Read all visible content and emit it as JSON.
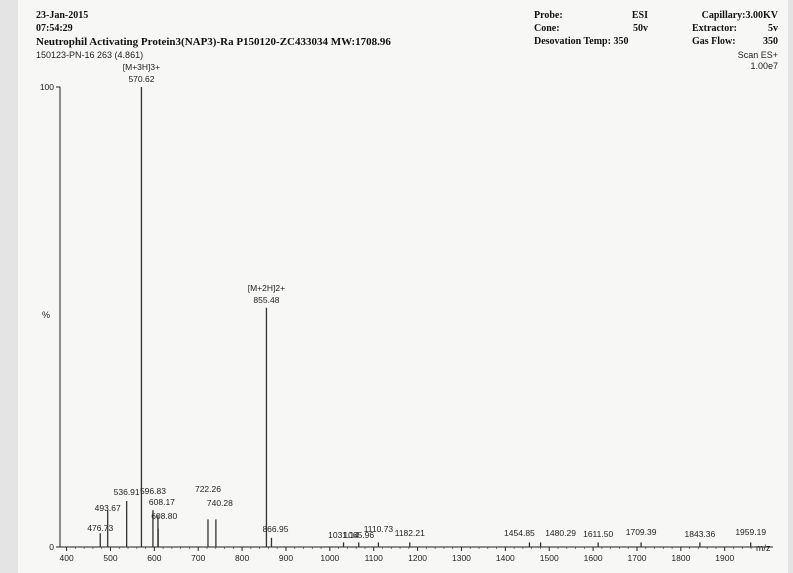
{
  "header": {
    "date": "23-Jan-2015",
    "time": "07:54:29",
    "title": "Neutrophil Activating Protein3(NAP3)-Ra  P150120-ZC433034  MW:1708.96",
    "sample": "150123-PN-16 263 (4.861)",
    "probe_label": "Probe:",
    "probe_value": "ESI",
    "cone_label": "Cone:",
    "cone_value": "50v",
    "desolvation_label": "Desovation  Temp: 350",
    "capillary": "Capillary:3.00KV",
    "extractor_label": "Extractor:",
    "extractor_value": "5v",
    "gasflow_label": "Gas Flow:",
    "gasflow_value": "350",
    "scan_mode": "Scan ES+",
    "intensity_max": "1.00e7"
  },
  "chart_data": {
    "type": "bar",
    "title": "Neutrophil Activating Protein3(NAP3)-Ra  P150120-ZC433034  MW:1708.96",
    "xlabel": "m/z",
    "ylabel": "%",
    "xlim": [
      385,
      2010
    ],
    "ylim": [
      0,
      100
    ],
    "x_ticks": [
      400,
      500,
      600,
      700,
      800,
      900,
      1000,
      1100,
      1200,
      1300,
      1400,
      1500,
      1600,
      1700,
      1800,
      1900
    ],
    "y_ticks": [
      0,
      100
    ],
    "grid": false,
    "legend": "none",
    "peaks": [
      {
        "mz": 476.73,
        "rel": 3
      },
      {
        "mz": 493.67,
        "rel": 8
      },
      {
        "mz": 536.91,
        "rel": 10
      },
      {
        "mz": 570.62,
        "rel": 100
      },
      {
        "mz": 596.83,
        "rel": 8
      },
      {
        "mz": 608.17,
        "rel": 7
      },
      {
        "mz": 608.8,
        "rel": 4
      },
      {
        "mz": 722.26,
        "rel": 6
      },
      {
        "mz": 740.28,
        "rel": 6
      },
      {
        "mz": 855.48,
        "rel": 52
      },
      {
        "mz": 866.95,
        "rel": 2
      },
      {
        "mz": 1031.14,
        "rel": 1
      },
      {
        "mz": 1065.96,
        "rel": 1
      },
      {
        "mz": 1110.73,
        "rel": 1
      },
      {
        "mz": 1182.21,
        "rel": 1
      },
      {
        "mz": 1454.85,
        "rel": 1
      },
      {
        "mz": 1480.29,
        "rel": 1
      },
      {
        "mz": 1611.5,
        "rel": 1
      },
      {
        "mz": 1709.39,
        "rel": 1
      },
      {
        "mz": 1843.36,
        "rel": 1
      },
      {
        "mz": 1959.19,
        "rel": 1
      }
    ],
    "peak_labels": [
      {
        "text": "476.73",
        "mz": 476.73
      },
      {
        "text": "493.67",
        "mz": 493.67
      },
      {
        "text": "536.91",
        "mz": 536.91
      },
      {
        "text": "570.62",
        "mz": 570.62
      },
      {
        "text": "596.83",
        "mz": 596.83
      },
      {
        "text": "608.17",
        "mz": 608.17
      },
      {
        "text": "608.80",
        "mz": 608.8
      },
      {
        "text": "722.26",
        "mz": 722.26
      },
      {
        "text": "740.28",
        "mz": 740.28
      },
      {
        "text": "855.48",
        "mz": 855.48
      },
      {
        "text": "866.95",
        "mz": 866.95
      },
      {
        "text": "1031.14",
        "mz": 1031.14
      },
      {
        "text": "1065.96",
        "mz": 1065.96
      },
      {
        "text": "1110.73",
        "mz": 1110.73
      },
      {
        "text": "1182.21",
        "mz": 1182.21
      },
      {
        "text": "1454.85",
        "mz": 1454.85
      },
      {
        "text": "1480.29",
        "mz": 1480.29
      },
      {
        "text": "1611.50",
        "mz": 1611.5
      },
      {
        "text": "1709.39",
        "mz": 1709.39
      },
      {
        "text": "1843.36",
        "mz": 1843.36
      },
      {
        "text": "1959.19",
        "mz": 1959.19
      }
    ],
    "annotations": [
      {
        "text": "[M+3H]3+",
        "mz": 570.62
      },
      {
        "text": "[M+2H]2+",
        "mz": 855.48
      }
    ]
  }
}
